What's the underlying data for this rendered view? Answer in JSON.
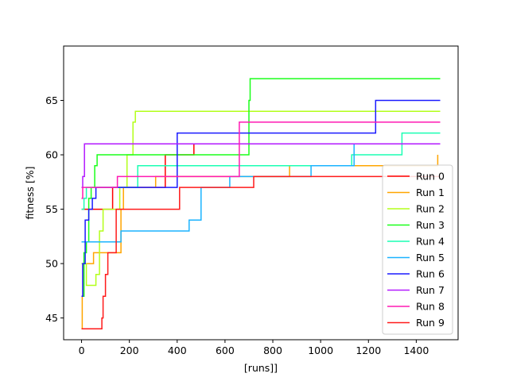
{
  "chart_data": {
    "type": "line",
    "title": "",
    "xlabel": "[runs]]",
    "ylabel": "fitness [%]",
    "xlim": [
      -75,
      1575
    ],
    "ylim": [
      43,
      70
    ],
    "xticks": [
      0,
      200,
      400,
      600,
      800,
      1000,
      1200,
      1400
    ],
    "yticks": [
      45,
      50,
      55,
      60,
      65
    ],
    "grid": false,
    "legend_position": "lower-right",
    "step": true,
    "series": [
      {
        "name": "Run 0",
        "color": "#ff0000",
        "x": [
          0,
          130,
          350,
          440,
          470,
          1500
        ],
        "y": [
          55,
          57,
          60,
          60,
          61,
          61
        ]
      },
      {
        "name": "Run 1",
        "color": "#ffa500",
        "x": [
          0,
          3,
          8,
          50,
          165,
          175,
          310,
          870,
          1490
        ],
        "y": [
          44,
          47,
          50,
          51,
          55,
          57,
          58,
          59,
          60
        ]
      },
      {
        "name": "Run 2",
        "color": "#b3ff1a",
        "x": [
          0,
          20,
          40,
          60,
          75,
          90,
          160,
          190,
          215,
          225,
          1500
        ],
        "y": [
          50,
          48,
          48,
          49,
          53,
          55,
          57,
          60,
          63,
          64,
          64
        ]
      },
      {
        "name": "Run 3",
        "color": "#1aff1a",
        "x": [
          0,
          10,
          20,
          30,
          40,
          55,
          65,
          690,
          700,
          705,
          1500
        ],
        "y": [
          47,
          51,
          52,
          56,
          57,
          59,
          60,
          60,
          65,
          67,
          67
        ]
      },
      {
        "name": "Run 4",
        "color": "#1affb3",
        "x": [
          0,
          10,
          20,
          235,
          1130,
          1340,
          1500
        ],
        "y": [
          55,
          56,
          57,
          59,
          60,
          62,
          62
        ]
      },
      {
        "name": "Run 5",
        "color": "#1ab3ff",
        "x": [
          0,
          165,
          450,
          500,
          620,
          960,
          1140,
          1500
        ],
        "y": [
          52,
          53,
          54,
          57,
          58,
          59,
          61,
          61
        ]
      },
      {
        "name": "Run 6",
        "color": "#1a1aff",
        "x": [
          0,
          5,
          15,
          30,
          45,
          60,
          400,
          1230,
          1500
        ],
        "y": [
          47,
          50,
          54,
          55,
          56,
          57,
          62,
          65,
          65
        ]
      },
      {
        "name": "Run 7",
        "color": "#b31aff",
        "x": [
          0,
          5,
          12,
          1500
        ],
        "y": [
          57,
          58,
          61,
          61
        ]
      },
      {
        "name": "Run 8",
        "color": "#ff1ab3",
        "x": [
          0,
          5,
          150,
          660,
          1500
        ],
        "y": [
          56,
          57,
          58,
          63,
          63
        ]
      },
      {
        "name": "Run 9",
        "color": "#ff1a1a",
        "x": [
          0,
          85,
          90,
          100,
          110,
          145,
          410,
          720,
          1500
        ],
        "y": [
          44,
          45,
          47,
          49,
          51,
          55,
          57,
          58,
          58
        ]
      }
    ]
  }
}
